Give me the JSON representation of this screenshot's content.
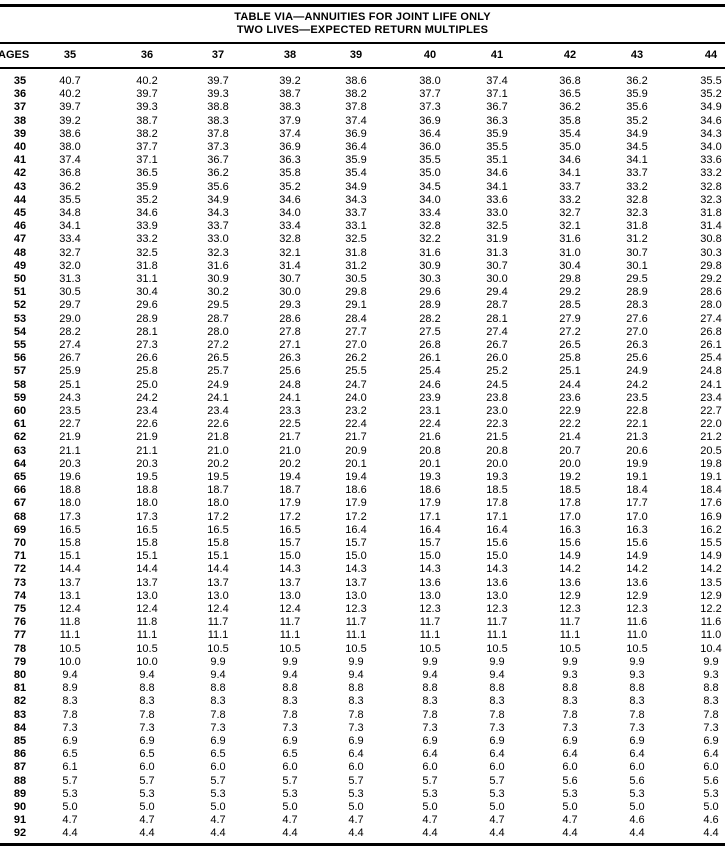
{
  "title": {
    "line1": "TABLE VIA—ANNUITIES FOR JOINT LIFE ONLY",
    "line2": "TWO LIVES—EXPECTED RETURN MULTIPLES"
  },
  "table": {
    "row_header_label": "AGES",
    "columns": [
      "35",
      "36",
      "37",
      "38",
      "39",
      "40",
      "41",
      "42",
      "43",
      "44"
    ],
    "rows": [
      {
        "age": "35",
        "values": [
          "40.7",
          "40.2",
          "39.7",
          "39.2",
          "38.6",
          "38.0",
          "37.4",
          "36.8",
          "36.2",
          "35.5"
        ]
      },
      {
        "age": "36",
        "values": [
          "40.2",
          "39.7",
          "39.3",
          "38.7",
          "38.2",
          "37.7",
          "37.1",
          "36.5",
          "35.9",
          "35.2"
        ]
      },
      {
        "age": "37",
        "values": [
          "39.7",
          "39.3",
          "38.8",
          "38.3",
          "37.8",
          "37.3",
          "36.7",
          "36.2",
          "35.6",
          "34.9"
        ]
      },
      {
        "age": "38",
        "values": [
          "39.2",
          "38.7",
          "38.3",
          "37.9",
          "37.4",
          "36.9",
          "36.3",
          "35.8",
          "35.2",
          "34.6"
        ]
      },
      {
        "age": "39",
        "values": [
          "38.6",
          "38.2",
          "37.8",
          "37.4",
          "36.9",
          "36.4",
          "35.9",
          "35.4",
          "34.9",
          "34.3"
        ]
      },
      {
        "age": "40",
        "values": [
          "38.0",
          "37.7",
          "37.3",
          "36.9",
          "36.4",
          "36.0",
          "35.5",
          "35.0",
          "34.5",
          "34.0"
        ]
      },
      {
        "age": "41",
        "values": [
          "37.4",
          "37.1",
          "36.7",
          "36.3",
          "35.9",
          "35.5",
          "35.1",
          "34.6",
          "34.1",
          "33.6"
        ]
      },
      {
        "age": "42",
        "values": [
          "36.8",
          "36.5",
          "36.2",
          "35.8",
          "35.4",
          "35.0",
          "34.6",
          "34.1",
          "33.7",
          "33.2"
        ]
      },
      {
        "age": "43",
        "values": [
          "36.2",
          "35.9",
          "35.6",
          "35.2",
          "34.9",
          "34.5",
          "34.1",
          "33.7",
          "33.2",
          "32.8"
        ]
      },
      {
        "age": "44",
        "values": [
          "35.5",
          "35.2",
          "34.9",
          "34.6",
          "34.3",
          "34.0",
          "33.6",
          "33.2",
          "32.8",
          "32.3"
        ]
      },
      {
        "age": "45",
        "values": [
          "34.8",
          "34.6",
          "34.3",
          "34.0",
          "33.7",
          "33.4",
          "33.0",
          "32.7",
          "32.3",
          "31.8"
        ]
      },
      {
        "age": "46",
        "values": [
          "34.1",
          "33.9",
          "33.7",
          "33.4",
          "33.1",
          "32.8",
          "32.5",
          "32.1",
          "31.8",
          "31.4"
        ]
      },
      {
        "age": "47",
        "values": [
          "33.4",
          "33.2",
          "33.0",
          "32.8",
          "32.5",
          "32.2",
          "31.9",
          "31.6",
          "31.2",
          "30.8"
        ]
      },
      {
        "age": "48",
        "values": [
          "32.7",
          "32.5",
          "32.3",
          "32.1",
          "31.8",
          "31.6",
          "31.3",
          "31.0",
          "30.7",
          "30.3"
        ]
      },
      {
        "age": "49",
        "values": [
          "32.0",
          "31.8",
          "31.6",
          "31.4",
          "31.2",
          "30.9",
          "30.7",
          "30.4",
          "30.1",
          "29.8"
        ]
      },
      {
        "age": "50",
        "values": [
          "31.3",
          "31.1",
          "30.9",
          "30.7",
          "30.5",
          "30.3",
          "30.0",
          "29.8",
          "29.5",
          "29.2"
        ]
      },
      {
        "age": "51",
        "values": [
          "30.5",
          "30.4",
          "30.2",
          "30.0",
          "29.8",
          "29.6",
          "29.4",
          "29.2",
          "28.9",
          "28.6"
        ]
      },
      {
        "age": "52",
        "values": [
          "29.7",
          "29.6",
          "29.5",
          "29.3",
          "29.1",
          "28.9",
          "28.7",
          "28.5",
          "28.3",
          "28.0"
        ]
      },
      {
        "age": "53",
        "values": [
          "29.0",
          "28.9",
          "28.7",
          "28.6",
          "28.4",
          "28.2",
          "28.1",
          "27.9",
          "27.6",
          "27.4"
        ]
      },
      {
        "age": "54",
        "values": [
          "28.2",
          "28.1",
          "28.0",
          "27.8",
          "27.7",
          "27.5",
          "27.4",
          "27.2",
          "27.0",
          "26.8"
        ]
      },
      {
        "age": "55",
        "values": [
          "27.4",
          "27.3",
          "27.2",
          "27.1",
          "27.0",
          "26.8",
          "26.7",
          "26.5",
          "26.3",
          "26.1"
        ]
      },
      {
        "age": "56",
        "values": [
          "26.7",
          "26.6",
          "26.5",
          "26.3",
          "26.2",
          "26.1",
          "26.0",
          "25.8",
          "25.6",
          "25.4"
        ]
      },
      {
        "age": "57",
        "values": [
          "25.9",
          "25.8",
          "25.7",
          "25.6",
          "25.5",
          "25.4",
          "25.2",
          "25.1",
          "24.9",
          "24.8"
        ]
      },
      {
        "age": "58",
        "values": [
          "25.1",
          "25.0",
          "24.9",
          "24.8",
          "24.7",
          "24.6",
          "24.5",
          "24.4",
          "24.2",
          "24.1"
        ]
      },
      {
        "age": "59",
        "values": [
          "24.3",
          "24.2",
          "24.1",
          "24.1",
          "24.0",
          "23.9",
          "23.8",
          "23.6",
          "23.5",
          "23.4"
        ]
      },
      {
        "age": "60",
        "values": [
          "23.5",
          "23.4",
          "23.4",
          "23.3",
          "23.2",
          "23.1",
          "23.0",
          "22.9",
          "22.8",
          "22.7"
        ]
      },
      {
        "age": "61",
        "values": [
          "22.7",
          "22.6",
          "22.6",
          "22.5",
          "22.4",
          "22.4",
          "22.3",
          "22.2",
          "22.1",
          "22.0"
        ]
      },
      {
        "age": "62",
        "values": [
          "21.9",
          "21.9",
          "21.8",
          "21.7",
          "21.7",
          "21.6",
          "21.5",
          "21.4",
          "21.3",
          "21.2"
        ]
      },
      {
        "age": "63",
        "values": [
          "21.1",
          "21.1",
          "21.0",
          "21.0",
          "20.9",
          "20.8",
          "20.8",
          "20.7",
          "20.6",
          "20.5"
        ]
      },
      {
        "age": "64",
        "values": [
          "20.3",
          "20.3",
          "20.2",
          "20.2",
          "20.1",
          "20.1",
          "20.0",
          "20.0",
          "19.9",
          "19.8"
        ]
      },
      {
        "age": "65",
        "values": [
          "19.6",
          "19.5",
          "19.5",
          "19.4",
          "19.4",
          "19.3",
          "19.3",
          "19.2",
          "19.1",
          "19.1"
        ]
      },
      {
        "age": "66",
        "values": [
          "18.8",
          "18.8",
          "18.7",
          "18.7",
          "18.6",
          "18.6",
          "18.5",
          "18.5",
          "18.4",
          "18.4"
        ]
      },
      {
        "age": "67",
        "values": [
          "18.0",
          "18.0",
          "18.0",
          "17.9",
          "17.9",
          "17.9",
          "17.8",
          "17.8",
          "17.7",
          "17.6"
        ]
      },
      {
        "age": "68",
        "values": [
          "17.3",
          "17.3",
          "17.2",
          "17.2",
          "17.2",
          "17.1",
          "17.1",
          "17.0",
          "17.0",
          "16.9"
        ]
      },
      {
        "age": "69",
        "values": [
          "16.5",
          "16.5",
          "16.5",
          "16.5",
          "16.4",
          "16.4",
          "16.4",
          "16.3",
          "16.3",
          "16.2"
        ]
      },
      {
        "age": "70",
        "values": [
          "15.8",
          "15.8",
          "15.8",
          "15.7",
          "15.7",
          "15.7",
          "15.6",
          "15.6",
          "15.6",
          "15.5"
        ]
      },
      {
        "age": "71",
        "values": [
          "15.1",
          "15.1",
          "15.1",
          "15.0",
          "15.0",
          "15.0",
          "15.0",
          "14.9",
          "14.9",
          "14.9"
        ]
      },
      {
        "age": "72",
        "values": [
          "14.4",
          "14.4",
          "14.4",
          "14.3",
          "14.3",
          "14.3",
          "14.3",
          "14.2",
          "14.2",
          "14.2"
        ]
      },
      {
        "age": "73",
        "values": [
          "13.7",
          "13.7",
          "13.7",
          "13.7",
          "13.7",
          "13.6",
          "13.6",
          "13.6",
          "13.6",
          "13.5"
        ]
      },
      {
        "age": "74",
        "values": [
          "13.1",
          "13.0",
          "13.0",
          "13.0",
          "13.0",
          "13.0",
          "13.0",
          "12.9",
          "12.9",
          "12.9"
        ]
      },
      {
        "age": "75",
        "values": [
          "12.4",
          "12.4",
          "12.4",
          "12.4",
          "12.3",
          "12.3",
          "12.3",
          "12.3",
          "12.3",
          "12.2"
        ]
      },
      {
        "age": "76",
        "values": [
          "11.8",
          "11.8",
          "11.7",
          "11.7",
          "11.7",
          "11.7",
          "11.7",
          "11.7",
          "11.6",
          "11.6"
        ]
      },
      {
        "age": "77",
        "values": [
          "11.1",
          "11.1",
          "11.1",
          "11.1",
          "11.1",
          "11.1",
          "11.1",
          "11.1",
          "11.0",
          "11.0"
        ]
      },
      {
        "age": "78",
        "values": [
          "10.5",
          "10.5",
          "10.5",
          "10.5",
          "10.5",
          "10.5",
          "10.5",
          "10.5",
          "10.5",
          "10.4"
        ]
      },
      {
        "age": "79",
        "values": [
          "10.0",
          "10.0",
          "9.9",
          "9.9",
          "9.9",
          "9.9",
          "9.9",
          "9.9",
          "9.9",
          "9.9"
        ]
      },
      {
        "age": "80",
        "values": [
          "9.4",
          "9.4",
          "9.4",
          "9.4",
          "9.4",
          "9.4",
          "9.4",
          "9.3",
          "9.3",
          "9.3"
        ]
      },
      {
        "age": "81",
        "values": [
          "8.9",
          "8.8",
          "8.8",
          "8.8",
          "8.8",
          "8.8",
          "8.8",
          "8.8",
          "8.8",
          "8.8"
        ]
      },
      {
        "age": "82",
        "values": [
          "8.3",
          "8.3",
          "8.3",
          "8.3",
          "8.3",
          "8.3",
          "8.3",
          "8.3",
          "8.3",
          "8.3"
        ]
      },
      {
        "age": "83",
        "values": [
          "7.8",
          "7.8",
          "7.8",
          "7.8",
          "7.8",
          "7.8",
          "7.8",
          "7.8",
          "7.8",
          "7.8"
        ]
      },
      {
        "age": "84",
        "values": [
          "7.3",
          "7.3",
          "7.3",
          "7.3",
          "7.3",
          "7.3",
          "7.3",
          "7.3",
          "7.3",
          "7.3"
        ]
      },
      {
        "age": "85",
        "values": [
          "6.9",
          "6.9",
          "6.9",
          "6.9",
          "6.9",
          "6.9",
          "6.9",
          "6.9",
          "6.9",
          "6.9"
        ]
      },
      {
        "age": "86",
        "values": [
          "6.5",
          "6.5",
          "6.5",
          "6.5",
          "6.4",
          "6.4",
          "6.4",
          "6.4",
          "6.4",
          "6.4"
        ]
      },
      {
        "age": "87",
        "values": [
          "6.1",
          "6.0",
          "6.0",
          "6.0",
          "6.0",
          "6.0",
          "6.0",
          "6.0",
          "6.0",
          "6.0"
        ]
      },
      {
        "age": "88",
        "values": [
          "5.7",
          "5.7",
          "5.7",
          "5.7",
          "5.7",
          "5.7",
          "5.7",
          "5.6",
          "5.6",
          "5.6"
        ]
      },
      {
        "age": "89",
        "values": [
          "5.3",
          "5.3",
          "5.3",
          "5.3",
          "5.3",
          "5.3",
          "5.3",
          "5.3",
          "5.3",
          "5.3"
        ]
      },
      {
        "age": "90",
        "values": [
          "5.0",
          "5.0",
          "5.0",
          "5.0",
          "5.0",
          "5.0",
          "5.0",
          "5.0",
          "5.0",
          "5.0"
        ]
      },
      {
        "age": "91",
        "values": [
          "4.7",
          "4.7",
          "4.7",
          "4.7",
          "4.7",
          "4.7",
          "4.7",
          "4.7",
          "4.6",
          "4.6"
        ]
      },
      {
        "age": "92",
        "values": [
          "4.4",
          "4.4",
          "4.4",
          "4.4",
          "4.4",
          "4.4",
          "4.4",
          "4.4",
          "4.4",
          "4.4"
        ]
      }
    ]
  }
}
